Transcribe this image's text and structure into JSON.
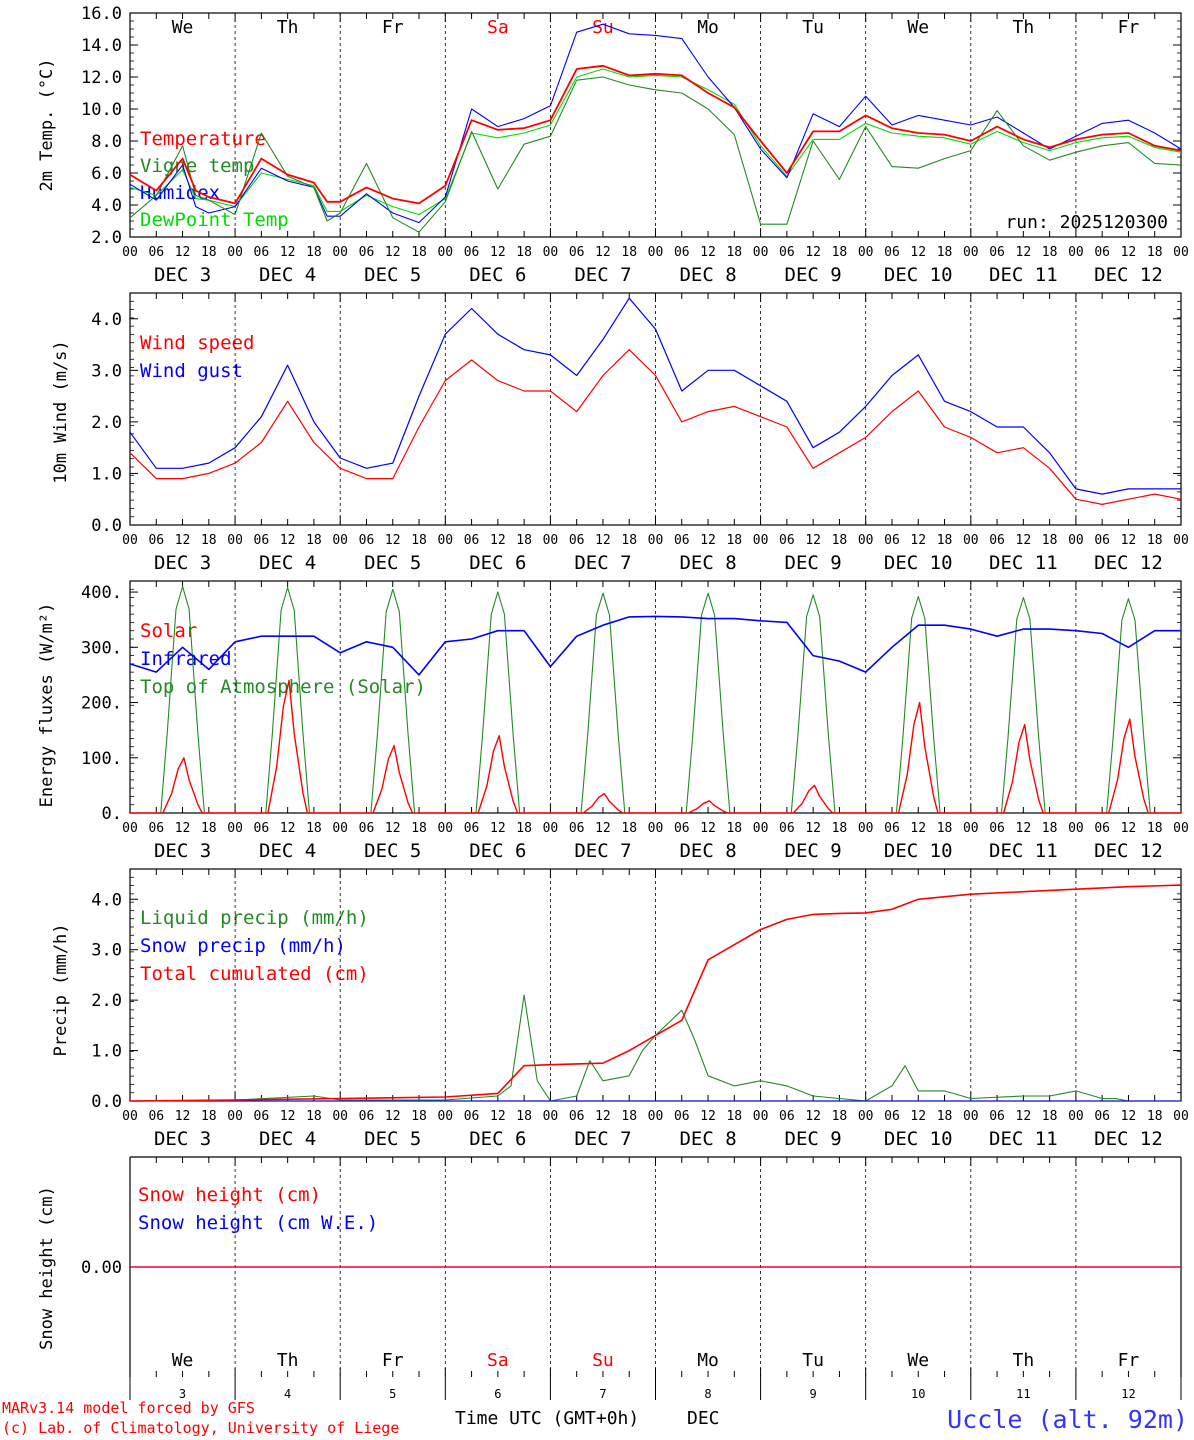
{
  "colors": {
    "red": "#ff0000",
    "green": "#228b22",
    "blue": "#0000ff",
    "lightgreen": "#00dd00",
    "black": "#000000",
    "weekend": "#ff0000"
  },
  "days": {
    "names": [
      "We",
      "Th",
      "Fr",
      "Sa",
      "Su",
      "Mo",
      "Tu",
      "We",
      "Th",
      "Fr"
    ],
    "weekend_flags": [
      false,
      false,
      false,
      true,
      true,
      false,
      false,
      false,
      false,
      false
    ],
    "dec_labels": [
      "DEC  3",
      "DEC  4",
      "DEC  5",
      "DEC  6",
      "DEC  7",
      "DEC  8",
      "DEC  9",
      "DEC 10",
      "DEC 11",
      "DEC 12"
    ],
    "numbers": [
      "3",
      "4",
      "5",
      "6",
      "7",
      "8",
      "9",
      "10",
      "11",
      "12"
    ],
    "hour_ticks": [
      "00",
      "06",
      "12",
      "18"
    ],
    "final_tick": "00"
  },
  "footer": {
    "model_line1": "MARv3.14 model forced by GFS",
    "model_line2": "(c) Lab. of Climatology, University of Liege",
    "xlabel": "Time UTC (GMT+0h)",
    "month": "DEC",
    "station": "Uccle (alt. 92m)"
  },
  "chart_data": [
    {
      "id": "temp",
      "type": "line",
      "ylabel": "2m Temp. (°C)",
      "ylim": [
        2.0,
        16.0
      ],
      "yticks": [
        "2.0",
        "4.0",
        "6.0",
        "8.0",
        "10.0",
        "12.0",
        "14.0",
        "16.0"
      ],
      "run": "run: 2025120300",
      "legend": [
        "Temperature",
        "Vigne temp",
        "Humidex",
        "DewPoint Temp"
      ],
      "x_hours": [
        0,
        6,
        12,
        15,
        18,
        24,
        30,
        36,
        42,
        45,
        48,
        54,
        60,
        66,
        72,
        78,
        84,
        90,
        96,
        102,
        108,
        114,
        120,
        126,
        132,
        138,
        144,
        150,
        156,
        162,
        168,
        174,
        180,
        186,
        192,
        198,
        204,
        210,
        216,
        222,
        228,
        234,
        240
      ],
      "series": [
        {
          "name": "Temperature",
          "color_key": "red",
          "values": [
            5.9,
            4.9,
            6.9,
            4.9,
            4.5,
            4.1,
            6.9,
            5.9,
            5.4,
            4.2,
            4.2,
            5.1,
            4.4,
            4.1,
            5.2,
            9.3,
            8.7,
            8.8,
            9.3,
            12.5,
            12.7,
            12.1,
            12.2,
            12.1,
            11.0,
            10.1,
            8.0,
            6.0,
            8.6,
            8.6,
            9.6,
            8.8,
            8.5,
            8.4,
            8.0,
            8.9,
            8.1,
            7.6,
            8.1,
            8.4,
            8.5,
            7.7,
            7.4
          ]
        },
        {
          "name": "Vigne temp",
          "color_key": "green",
          "values": [
            3.2,
            4.6,
            7.7,
            4.6,
            4.3,
            3.4,
            8.5,
            5.8,
            5.1,
            3.0,
            3.5,
            6.6,
            3.2,
            2.3,
            4.2,
            8.6,
            5.0,
            7.8,
            8.3,
            11.8,
            12.0,
            11.5,
            11.2,
            11.0,
            10.0,
            8.4,
            2.8,
            2.8,
            8.0,
            5.6,
            8.9,
            6.4,
            6.3,
            6.9,
            7.4,
            9.9,
            7.7,
            6.8,
            7.3,
            7.7,
            7.9,
            6.6,
            6.5
          ]
        },
        {
          "name": "Humidex",
          "color_key": "blue",
          "values": [
            5.3,
            4.3,
            6.5,
            3.9,
            3.5,
            3.9,
            6.3,
            5.5,
            5.1,
            3.3,
            3.3,
            4.7,
            3.5,
            2.9,
            4.5,
            10.0,
            8.9,
            9.4,
            10.2,
            14.8,
            15.3,
            14.7,
            14.6,
            14.4,
            12.0,
            10.1,
            7.5,
            5.7,
            9.7,
            8.9,
            10.8,
            9.0,
            9.6,
            9.3,
            9.0,
            9.5,
            8.5,
            7.5,
            8.3,
            9.1,
            9.3,
            8.5,
            7.5
          ]
        },
        {
          "name": "DewPoint Temp",
          "color_key": "lightgreen",
          "values": [
            5.1,
            4.6,
            6.2,
            4.4,
            4.3,
            3.9,
            6.0,
            5.6,
            5.2,
            3.6,
            3.6,
            4.6,
            3.9,
            3.4,
            4.4,
            8.5,
            8.2,
            8.5,
            9.0,
            12.0,
            12.5,
            12.0,
            12.1,
            12.0,
            11.2,
            10.3,
            7.7,
            5.8,
            8.1,
            8.1,
            9.1,
            8.5,
            8.3,
            8.2,
            7.8,
            8.6,
            7.9,
            7.4,
            7.9,
            8.2,
            8.3,
            7.6,
            7.3
          ]
        }
      ]
    },
    {
      "id": "wind",
      "type": "line",
      "ylabel": "10m Wind (m/s)",
      "ylim": [
        0.0,
        4.5
      ],
      "yticks": [
        "0.0",
        "1.0",
        "2.0",
        "3.0",
        "4.0"
      ],
      "legend": [
        "Wind speed",
        "Wind gust"
      ],
      "x_hours": [
        0,
        6,
        12,
        18,
        24,
        30,
        36,
        42,
        48,
        54,
        60,
        66,
        72,
        78,
        84,
        90,
        96,
        102,
        108,
        114,
        120,
        126,
        132,
        138,
        144,
        150,
        156,
        162,
        168,
        174,
        180,
        186,
        192,
        198,
        204,
        210,
        216,
        222,
        228,
        234,
        240
      ],
      "series": [
        {
          "name": "Wind speed",
          "color_key": "red",
          "values": [
            1.4,
            0.9,
            0.9,
            1.0,
            1.2,
            1.6,
            2.4,
            1.6,
            1.1,
            0.9,
            0.9,
            1.9,
            2.8,
            3.2,
            2.8,
            2.6,
            2.6,
            2.2,
            2.9,
            3.4,
            2.9,
            2.0,
            2.2,
            2.3,
            2.1,
            1.9,
            1.1,
            1.4,
            1.7,
            2.2,
            2.6,
            1.9,
            1.7,
            1.4,
            1.5,
            1.1,
            0.5,
            0.4,
            0.5,
            0.6,
            0.5
          ]
        },
        {
          "name": "Wind gust",
          "color_key": "blue",
          "values": [
            1.8,
            1.1,
            1.1,
            1.2,
            1.5,
            2.1,
            3.1,
            2.0,
            1.3,
            1.1,
            1.2,
            2.5,
            3.7,
            4.2,
            3.7,
            3.4,
            3.3,
            2.9,
            3.6,
            4.4,
            3.8,
            2.6,
            3.0,
            3.0,
            2.7,
            2.4,
            1.5,
            1.8,
            2.3,
            2.9,
            3.3,
            2.4,
            2.2,
            1.9,
            1.9,
            1.4,
            0.7,
            0.6,
            0.7,
            0.7,
            0.7
          ]
        }
      ]
    },
    {
      "id": "flux",
      "type": "line",
      "ylabel": "Energy fluxes (W/m²)",
      "ylim": [
        0,
        420
      ],
      "yticks": [
        "0.",
        "100.",
        "200.",
        "300.",
        "400."
      ],
      "legend": [
        "Solar",
        "Infrared",
        "Top of Atmosphere (Solar)"
      ],
      "solar_peaks": [
        100,
        240,
        122,
        140,
        35,
        22,
        50,
        200,
        160,
        170
      ],
      "toa_peaks": [
        410,
        408,
        405,
        400,
        398,
        398,
        395,
        392,
        390,
        388
      ],
      "infrared": {
        "x_hours": [
          0,
          6,
          12,
          18,
          24,
          30,
          36,
          42,
          48,
          54,
          60,
          66,
          72,
          78,
          84,
          90,
          96,
          102,
          108,
          114,
          120,
          126,
          132,
          138,
          144,
          150,
          156,
          162,
          168,
          174,
          180,
          186,
          192,
          198,
          204,
          210,
          216,
          222,
          228,
          234,
          240
        ],
        "values": [
          270,
          255,
          300,
          260,
          310,
          320,
          320,
          320,
          290,
          310,
          300,
          250,
          310,
          315,
          330,
          330,
          265,
          320,
          340,
          355,
          356,
          355,
          352,
          352,
          348,
          345,
          285,
          275,
          255,
          300,
          340,
          340,
          333,
          320,
          333,
          333,
          330,
          325,
          300,
          330,
          330
        ]
      },
      "series": [
        {
          "name": "Solar",
          "color_key": "red"
        },
        {
          "name": "Infrared",
          "color_key": "blue"
        },
        {
          "name": "Top of Atmosphere (Solar)",
          "color_key": "green"
        }
      ]
    },
    {
      "id": "precip",
      "type": "line",
      "ylabel": "Precip (mm/h)",
      "ylim": [
        0.0,
        4.6
      ],
      "yticks": [
        "0.0",
        "1.0",
        "2.0",
        "3.0",
        "4.0"
      ],
      "legend": [
        "Liquid precip (mm/h)",
        "Snow precip (mm/h)",
        "Total cumulated (cm)"
      ],
      "series": [
        {
          "name": "Liquid precip (mm/h)",
          "color_key": "green",
          "x_hours": [
            0,
            24,
            42,
            48,
            72,
            84,
            87,
            90,
            93,
            96,
            102,
            105,
            108,
            114,
            117,
            120,
            126,
            129,
            132,
            138,
            144,
            150,
            156,
            168,
            174,
            177,
            180,
            186,
            192,
            204,
            210,
            216,
            222,
            225,
            228,
            240
          ],
          "values": [
            0.0,
            0.02,
            0.1,
            0.02,
            0.02,
            0.1,
            0.3,
            2.1,
            0.4,
            0.0,
            0.1,
            0.8,
            0.4,
            0.5,
            1.0,
            1.3,
            1.8,
            1.2,
            0.5,
            0.3,
            0.4,
            0.3,
            0.1,
            0.0,
            0.3,
            0.7,
            0.2,
            0.2,
            0.05,
            0.1,
            0.1,
            0.2,
            0.05,
            0.05,
            0.0,
            0.0
          ]
        },
        {
          "name": "Snow precip (mm/h)",
          "color_key": "blue",
          "x_hours": [
            0,
            240
          ],
          "values": [
            0.0,
            0.0
          ]
        },
        {
          "name": "Total cumulated (cm)",
          "color_key": "red",
          "x_hours": [
            0,
            24,
            48,
            72,
            84,
            90,
            96,
            108,
            114,
            120,
            126,
            132,
            138,
            144,
            150,
            156,
            162,
            168,
            174,
            180,
            192,
            204,
            216,
            228,
            240
          ],
          "values": [
            0.0,
            0.02,
            0.05,
            0.08,
            0.15,
            0.7,
            0.72,
            0.75,
            1.0,
            1.3,
            1.6,
            2.8,
            3.1,
            3.4,
            3.6,
            3.7,
            3.72,
            3.73,
            3.8,
            4.0,
            4.1,
            4.15,
            4.2,
            4.25,
            4.28
          ]
        }
      ]
    },
    {
      "id": "snow",
      "type": "line",
      "ylabel": "Snow height (cm)",
      "ylim": [
        -1.0,
        1.0
      ],
      "yticks": [
        "0.00"
      ],
      "legend": [
        "Snow height (cm)",
        "Snow height (cm W.E.)"
      ],
      "series": [
        {
          "name": "Snow height (cm)",
          "color_key": "red",
          "x_hours": [
            0,
            240
          ],
          "values": [
            0.0,
            0.0
          ]
        },
        {
          "name": "Snow height (cm W.E.)",
          "color_key": "blue",
          "x_hours": [
            0,
            240
          ],
          "values": [
            0.0,
            0.0
          ]
        }
      ]
    }
  ]
}
